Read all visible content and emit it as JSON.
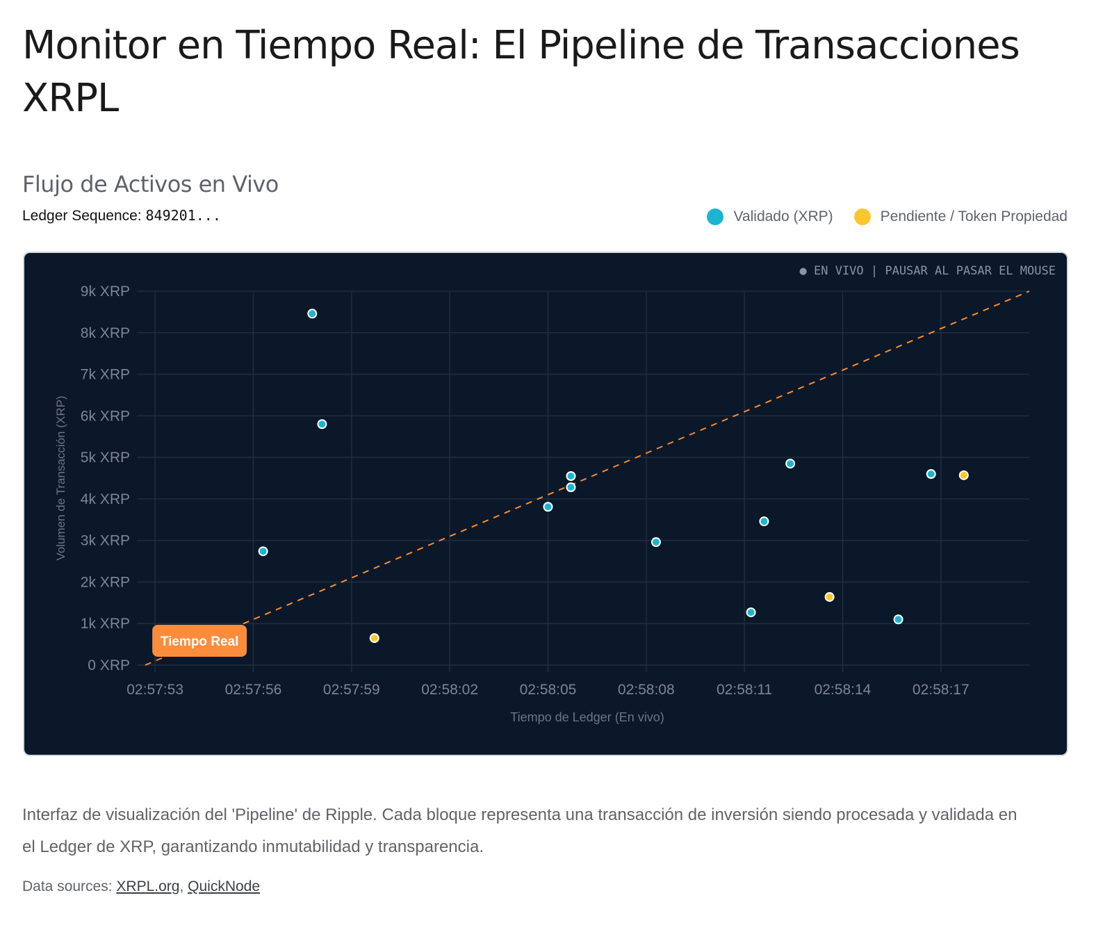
{
  "page": {
    "title": "Monitor en Tiempo Real: El Pipeline de Transacciones XRPL",
    "subtitle": "Flujo de Activos en Vivo",
    "ledger_label": "Ledger Sequence:",
    "ledger_value": "849201...",
    "live_status": "● EN VIVO | PAUSAR AL PASAR EL MOUSE",
    "caption": "Interfaz de visualización del 'Pipeline' de Ripple. Cada bloque representa una transacción de inversión siendo procesada y validada en el Ledger de XRP, garantizando inmutabilidad y transparencia.",
    "sources_label": "Data sources:",
    "sources": [
      "XRPL.org",
      "QuickNode"
    ],
    "sources_sep": ","
  },
  "chart_data": {
    "type": "scatter",
    "xlabel": "Tiempo de Ledger (En vivo)",
    "ylabel": "Volumen de Transacción (XRP)",
    "x_ticks": [
      "02:57:53",
      "02:57:56",
      "02:57:59",
      "02:58:02",
      "02:58:05",
      "02:58:08",
      "02:58:11",
      "02:58:14",
      "02:58:17"
    ],
    "y_ticks": [
      "0 XRP",
      "1k XRP",
      "2k XRP",
      "3k XRP",
      "4k XRP",
      "5k XRP",
      "6k XRP",
      "7k XRP",
      "8k XRP",
      "9k XRP"
    ],
    "xlim": [
      "02:57:52.7",
      "02:58:19.7"
    ],
    "ylim": [
      0,
      9000
    ],
    "grid": true,
    "legend_position": "top-right",
    "series": [
      {
        "name": "Validado (XRP)",
        "color": "#1bb5d1",
        "points": [
          [
            "02:57:56.3",
            2740
          ],
          [
            "02:57:57.8",
            8460
          ],
          [
            "02:57:58.1",
            5800
          ],
          [
            "02:58:05.0",
            3810
          ],
          [
            "02:58:05.7",
            4550
          ],
          [
            "02:58:05.7",
            4280
          ],
          [
            "02:58:08.3",
            2960
          ],
          [
            "02:58:11.2",
            1270
          ],
          [
            "02:58:11.6",
            3460
          ],
          [
            "02:58:12.4",
            4850
          ],
          [
            "02:58:15.7",
            1100
          ],
          [
            "02:58:16.7",
            4600
          ]
        ]
      },
      {
        "name": "Pendiente / Token Propiedad",
        "color": "#fcc72c",
        "points": [
          [
            "02:57:59.7",
            650
          ],
          [
            "02:58:13.6",
            1640
          ],
          [
            "02:58:17.7",
            4570
          ]
        ]
      }
    ],
    "trend_line": {
      "color": "#fb8c2e",
      "points": [
        [
          "02:57:52.7",
          0
        ],
        [
          "02:58:19.7",
          9000
        ]
      ]
    },
    "annotation": {
      "text": "Tiempo Real",
      "color": "#fb8c3c",
      "at": [
        "02:57:53",
        0
      ]
    }
  }
}
